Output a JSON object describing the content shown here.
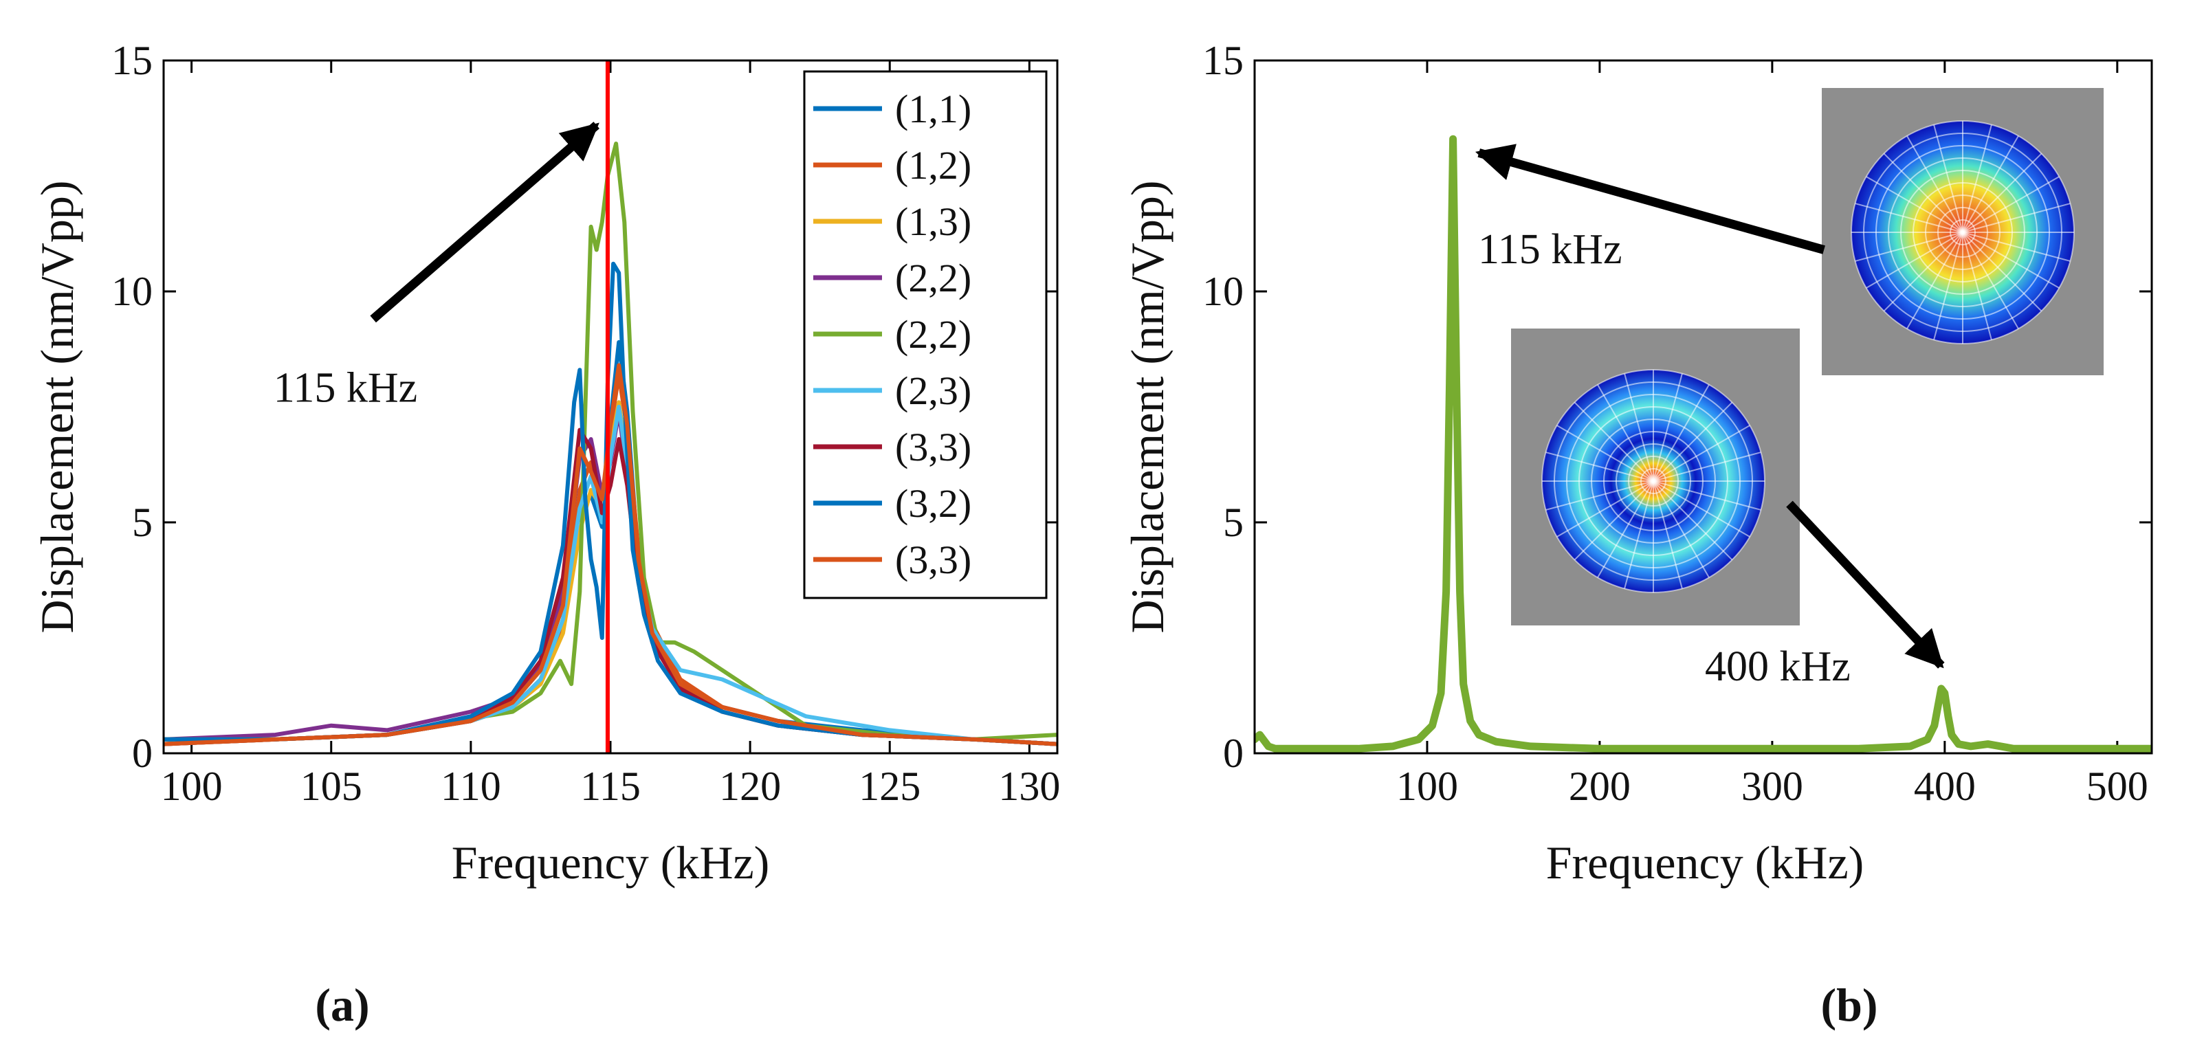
{
  "chart_data": [
    {
      "panel_label": "(a)",
      "type": "line",
      "xlabel": "Frequency (kHz)",
      "ylabel": "Displacement (nm/Vpp)",
      "xlim": [
        99,
        131
      ],
      "ylim": [
        0,
        15
      ],
      "xticks": [
        100,
        105,
        110,
        115,
        120,
        125,
        130
      ],
      "yticks": [
        0,
        5,
        10,
        15
      ],
      "legend_position": "top-right",
      "annotations": [
        {
          "text": "115 kHz",
          "arrow_from": [
            106.5,
            9.4
          ],
          "arrow_to": [
            114.5,
            13.6
          ]
        }
      ],
      "vertical_line": {
        "x": 114.9,
        "color": "#ff0000"
      },
      "series": [
        {
          "name": "(1,1)",
          "color": "#0072BD",
          "x": [
            99,
            103,
            107,
            110,
            111.5,
            112.5,
            113.3,
            113.9,
            114.3,
            114.7,
            115.0,
            115.3,
            115.6,
            116.0,
            116.5,
            117.5,
            119,
            121,
            124,
            128,
            131
          ],
          "y": [
            0.3,
            0.3,
            0.4,
            0.7,
            1.1,
            1.8,
            3.2,
            5.3,
            5.6,
            4.9,
            7.2,
            8.9,
            7.4,
            4.2,
            2.6,
            1.5,
            1.0,
            0.7,
            0.5,
            0.3,
            0.2
          ]
        },
        {
          "name": "(1,2)",
          "color": "#D95319",
          "x": [
            99,
            103,
            107,
            110,
            111.5,
            112.5,
            113.3,
            113.9,
            114.3,
            114.7,
            115.0,
            115.3,
            115.6,
            116.0,
            116.5,
            117.5,
            119,
            121,
            124,
            128,
            131
          ],
          "y": [
            0.2,
            0.3,
            0.4,
            0.7,
            1.0,
            1.6,
            2.8,
            5.7,
            6.3,
            5.2,
            7.0,
            8.2,
            7.0,
            4.4,
            2.8,
            1.6,
            1.0,
            0.7,
            0.4,
            0.3,
            0.2
          ]
        },
        {
          "name": "(1,3)",
          "color": "#EDB120",
          "x": [
            99,
            103,
            107,
            110,
            111.5,
            112.5,
            113.3,
            113.9,
            114.3,
            114.7,
            115.0,
            115.3,
            115.6,
            116.0,
            116.5,
            117.5,
            119,
            121,
            124,
            128,
            131
          ],
          "y": [
            0.2,
            0.3,
            0.4,
            0.7,
            1.0,
            1.5,
            2.6,
            4.8,
            5.7,
            5.3,
            6.6,
            7.6,
            6.3,
            4.0,
            2.6,
            1.5,
            0.9,
            0.6,
            0.4,
            0.3,
            0.2
          ]
        },
        {
          "name": "(2,2)",
          "color": "#7E2F8E",
          "x": [
            99,
            103,
            105,
            107,
            110,
            111.5,
            112.5,
            113.3,
            113.9,
            114.3,
            114.7,
            115.0,
            115.3,
            115.6,
            116.0,
            116.5,
            117.5,
            119,
            121,
            124,
            128,
            131
          ],
          "y": [
            0.3,
            0.4,
            0.6,
            0.5,
            0.9,
            1.2,
            1.9,
            3.5,
            6.4,
            6.8,
            5.6,
            6.3,
            7.4,
            6.0,
            3.8,
            2.5,
            1.4,
            0.9,
            0.6,
            0.4,
            0.3,
            0.2
          ]
        },
        {
          "name": "(2,2)",
          "color": "#77AC30",
          "x": [
            99,
            103,
            107,
            109,
            110.5,
            111.5,
            112.5,
            113.2,
            113.6,
            113.9,
            114.1,
            114.3,
            114.5,
            114.7,
            114.9,
            115.2,
            115.5,
            115.8,
            116.2,
            116.7,
            117.3,
            118,
            119,
            120,
            122,
            125,
            128,
            131
          ],
          "y": [
            0.3,
            0.3,
            0.4,
            0.6,
            0.8,
            0.9,
            1.3,
            2.0,
            1.5,
            3.5,
            7.5,
            11.4,
            10.9,
            11.5,
            12.5,
            13.2,
            11.5,
            7.4,
            3.8,
            2.4,
            2.4,
            2.2,
            1.8,
            1.4,
            0.6,
            0.4,
            0.3,
            0.4
          ]
        },
        {
          "name": "(2,3)",
          "color": "#4DBEEE",
          "x": [
            99,
            103,
            107,
            110,
            111.5,
            112.5,
            113.3,
            113.9,
            114.3,
            114.7,
            115.0,
            115.3,
            115.6,
            116.0,
            116.5,
            117.5,
            119,
            120.5,
            122,
            125,
            128,
            131
          ],
          "y": [
            0.2,
            0.3,
            0.4,
            0.7,
            1.0,
            1.6,
            2.9,
            5.3,
            6.0,
            5.0,
            6.4,
            7.5,
            6.2,
            4.0,
            2.7,
            1.8,
            1.6,
            1.2,
            0.8,
            0.5,
            0.3,
            0.2
          ]
        },
        {
          "name": "(3,3)",
          "color": "#A2142F",
          "x": [
            99,
            103,
            107,
            110,
            111.5,
            112.5,
            113.3,
            113.9,
            114.3,
            114.7,
            115.0,
            115.3,
            115.6,
            116.0,
            116.5,
            117.5,
            119,
            121,
            124,
            128,
            131
          ],
          "y": [
            0.2,
            0.3,
            0.4,
            0.7,
            1.2,
            2.0,
            3.8,
            7.0,
            6.6,
            5.2,
            5.8,
            6.8,
            5.8,
            3.7,
            2.4,
            1.4,
            0.9,
            0.6,
            0.4,
            0.3,
            0.2
          ]
        },
        {
          "name": "(3,2)",
          "color": "#0072BD",
          "x": [
            99,
            103,
            107,
            110,
            111.5,
            112.5,
            113.3,
            113.7,
            113.9,
            114.1,
            114.3,
            114.5,
            114.7,
            114.9,
            115.1,
            115.3,
            115.5,
            115.8,
            116.2,
            116.7,
            117.5,
            119,
            121,
            124,
            128,
            131
          ],
          "y": [
            0.3,
            0.3,
            0.4,
            0.8,
            1.3,
            2.2,
            4.5,
            7.6,
            8.3,
            5.5,
            4.2,
            3.6,
            2.5,
            8.0,
            10.6,
            10.4,
            7.6,
            4.4,
            3.0,
            2.0,
            1.3,
            0.9,
            0.6,
            0.4,
            0.3,
            0.2
          ]
        },
        {
          "name": "(3,3)",
          "color": "#D95319",
          "x": [
            99,
            103,
            107,
            110,
            111.5,
            112.5,
            113.3,
            113.9,
            114.3,
            114.7,
            115.0,
            115.3,
            115.6,
            116.0,
            116.5,
            117.5,
            119,
            121,
            124,
            128,
            131
          ],
          "y": [
            0.2,
            0.3,
            0.4,
            0.7,
            1.1,
            1.8,
            3.2,
            6.6,
            6.1,
            5.5,
            7.1,
            8.4,
            7.1,
            4.2,
            2.6,
            1.5,
            1.0,
            0.7,
            0.4,
            0.3,
            0.2
          ]
        }
      ]
    },
    {
      "panel_label": "(b)",
      "type": "line",
      "xlabel": "Frequency (kHz)",
      "ylabel": "Displacement (nm/Vpp)",
      "xlim": [
        0,
        520
      ],
      "ylim": [
        0,
        15
      ],
      "xticks": [
        100,
        200,
        300,
        400,
        500
      ],
      "yticks": [
        0,
        5,
        10,
        15
      ],
      "annotations": [
        {
          "text": "115 kHz",
          "arrow_from": [
            330,
            10.9
          ],
          "arrow_to": [
            130,
            13.0
          ]
        },
        {
          "text": "400 kHz",
          "arrow_from": [
            310,
            5.4
          ],
          "arrow_to": [
            398,
            1.9
          ]
        }
      ],
      "insets": [
        "fundamental mode shape (115 kHz)",
        "second mode shape (400 kHz)"
      ],
      "series": [
        {
          "color": "#77AC30",
          "x": [
            0,
            3,
            5,
            8,
            12,
            20,
            40,
            60,
            80,
            95,
            103,
            108,
            111,
            113,
            115,
            117,
            119,
            121,
            125,
            130,
            140,
            160,
            200,
            250,
            300,
            350,
            380,
            390,
            394,
            396,
            398,
            400,
            402,
            404,
            408,
            415,
            425,
            440,
            470,
            500,
            520
          ],
          "y": [
            0.3,
            0.4,
            0.3,
            0.15,
            0.1,
            0.1,
            0.1,
            0.1,
            0.15,
            0.3,
            0.6,
            1.3,
            3.5,
            8.0,
            13.3,
            8.0,
            3.5,
            1.5,
            0.7,
            0.4,
            0.25,
            0.15,
            0.1,
            0.1,
            0.1,
            0.1,
            0.15,
            0.3,
            0.6,
            1.0,
            1.4,
            1.3,
            0.8,
            0.4,
            0.2,
            0.15,
            0.2,
            0.1,
            0.1,
            0.1,
            0.1
          ]
        }
      ]
    }
  ]
}
